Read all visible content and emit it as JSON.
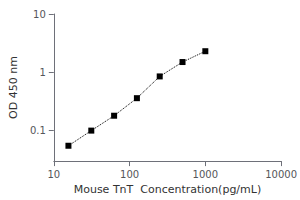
{
  "chart_data": {
    "type": "line",
    "x": [
      15.6,
      31.25,
      62.5,
      125,
      250,
      500,
      1000
    ],
    "values": [
      0.055,
      0.1,
      0.18,
      0.36,
      0.85,
      1.5,
      2.3
    ],
    "xlabel": "Mouse TnT  Concentration(pg/mL)",
    "ylabel": "OD 450 nm",
    "xlim": [
      10,
      10000
    ],
    "ylim": [
      0.03,
      10
    ],
    "xticks": [
      10,
      100,
      1000,
      10000
    ],
    "yticks": [
      0.1,
      1,
      10
    ],
    "log": true,
    "grid": false,
    "color": "black",
    "marker": "square",
    "line_style": "dotted"
  }
}
